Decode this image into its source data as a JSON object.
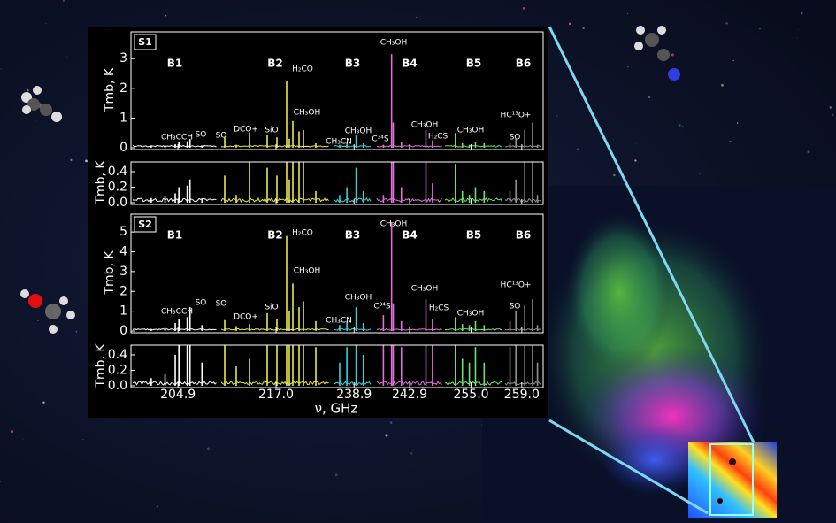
{
  "chart_data": {
    "type": "spectrum",
    "x_label": "ν, GHz",
    "y_label": "Tmb, K",
    "bands": [
      {
        "name": "B1",
        "color": "#ffffff",
        "xlim": [
          200.0,
          209.1
        ],
        "xtick": 204.9,
        "x": [
          202.0,
          203.5,
          204.6,
          205.0,
          205.9,
          206.2,
          207.5
        ]
      },
      {
        "name": "B2",
        "color": "#e8e84a",
        "xlim": [
          210.8,
          223.0
        ],
        "xtick": {
          "value": 217,
          "label": "217.0"
        },
        "x": [
          211.2,
          212.5,
          214.0,
          216.0,
          217.1,
          218.2,
          218.5,
          218.9,
          219.6,
          220.1,
          221.5
        ]
      },
      {
        "name": "B3",
        "color": "#39d0d8",
        "xlim": [
          236.9,
          240.6
        ],
        "xtick": 238.9,
        "x": [
          237.5,
          238.2,
          239.1,
          239.8
        ]
      },
      {
        "name": "B4",
        "color": "#e070d8",
        "xlim": [
          240.9,
          244.9
        ],
        "xtick": 242.9,
        "x": [
          241.3,
          241.8,
          241.9,
          242.4,
          243.9,
          244.3
        ]
      },
      {
        "name": "B5",
        "color": "#70e070",
        "xlim": [
          252.0,
          258.6
        ],
        "xtick": {
          "value": 255,
          "label": "255.0"
        },
        "x": [
          253.2,
          254.0,
          254.8,
          255.5,
          256.5
        ]
      },
      {
        "name": "B6",
        "color": "#909090",
        "xlim": [
          257.3,
          261.0
        ],
        "xtick": {
          "value": 259,
          "label": "259.0"
        },
        "x": [
          257.8,
          258.4,
          259.3,
          260.1,
          260.6
        ]
      }
    ],
    "series": [
      {
        "name": "S1",
        "ylim": [
          0,
          3.9
        ],
        "yticks": [
          0,
          1,
          2,
          3
        ],
        "zoom_ylim": [
          0,
          0.48
        ],
        "zoom_yticks": [
          {
            "value": 0,
            "label": "0.0"
          },
          0.2,
          0.4
        ],
        "values": [
          [
            0.06,
            0.08,
            0.12,
            0.2,
            0.22,
            0.3,
            0.05
          ],
          [
            0.35,
            0.1,
            0.52,
            0.45,
            0.35,
            2.25,
            0.3,
            0.9,
            0.55,
            0.6,
            0.15
          ],
          [
            0.1,
            0.2,
            0.45,
            0.15
          ],
          [
            0.1,
            3.15,
            0.85,
            0.2,
            0.6,
            0.25
          ],
          [
            0.5,
            0.15,
            0.1,
            0.2,
            0.15
          ],
          [
            0.15,
            0.3,
            0.6,
            0.85,
            0.1
          ]
        ],
        "annotations": [
          "CH₃CCH",
          "SO",
          "SO",
          "DCO+",
          "SiO",
          "H₂CO",
          "CH₃OH",
          "CH₃CN",
          "CH₃OH",
          "C³⁴S",
          "CH₃OH",
          "CH₃OH",
          "H₂CS",
          "CH₃OH",
          "SO",
          "HC¹³O+"
        ]
      },
      {
        "name": "S2",
        "ylim": [
          0,
          5.9
        ],
        "yticks": [
          0,
          1,
          2,
          3,
          4,
          5
        ],
        "zoom_ylim": [
          0,
          0.48
        ],
        "zoom_yticks": [
          {
            "value": 0,
            "label": "0.0"
          },
          0.2,
          0.4
        ],
        "values": [
          [
            0.1,
            0.15,
            0.4,
            0.6,
            0.7,
            1.2,
            0.3
          ],
          [
            0.55,
            0.25,
            0.35,
            0.9,
            0.6,
            4.8,
            1.0,
            2.4,
            1.2,
            1.5,
            0.5
          ],
          [
            0.3,
            0.5,
            1.2,
            0.4
          ],
          [
            0.8,
            5.5,
            1.4,
            0.5,
            1.6,
            0.6
          ],
          [
            0.7,
            0.35,
            0.3,
            0.5,
            0.3
          ],
          [
            0.5,
            1.0,
            1.3,
            1.6,
            0.3
          ]
        ],
        "annotations": [
          "CH₃CCH",
          "SO",
          "SO",
          "DCO+",
          "SiO",
          "H₂CO",
          "CH₃OH",
          "CH₃CN",
          "CH₃OH",
          "C³⁴S",
          "CH₃OH",
          "CH₃OH",
          "H₂CS",
          "CH₃OH",
          "SO",
          "HC¹³O+"
        ]
      }
    ]
  }
}
